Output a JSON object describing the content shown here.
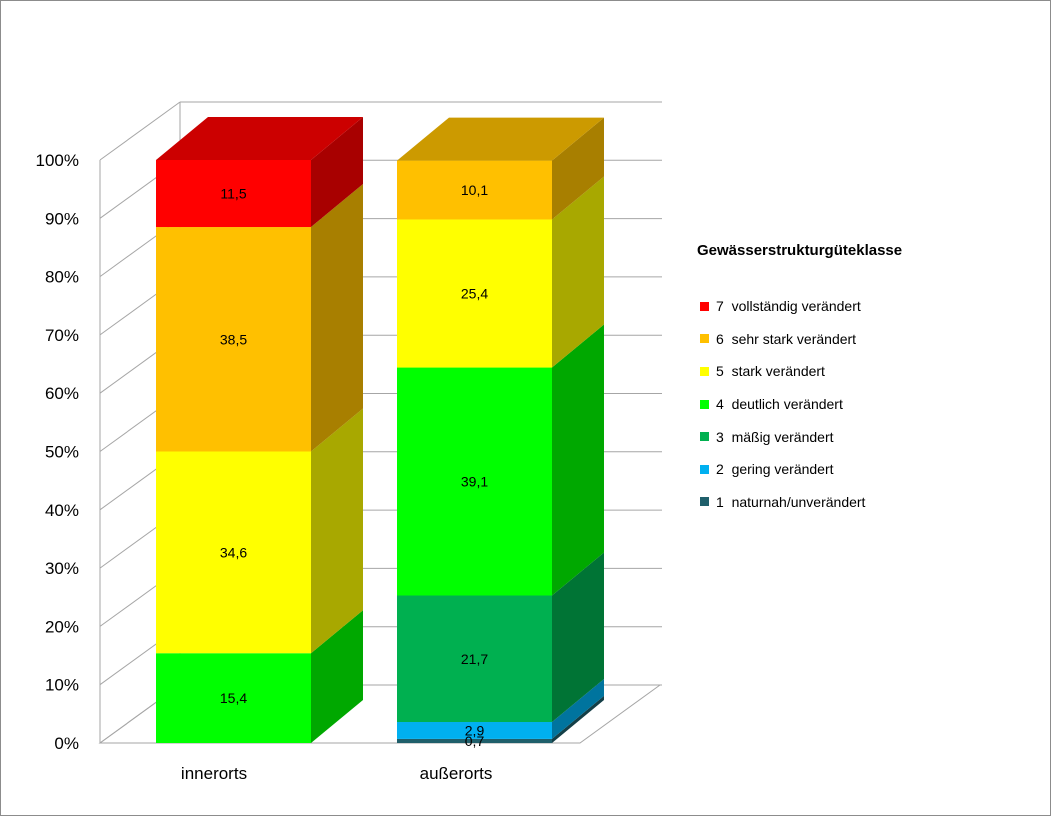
{
  "chart_data": {
    "type": "bar",
    "stacked": true,
    "three_d": true,
    "categories": [
      "innerorts",
      "außerorts"
    ],
    "ylim": [
      0,
      100
    ],
    "yticks": [
      "0%",
      "10%",
      "20%",
      "30%",
      "40%",
      "50%",
      "60%",
      "70%",
      "80%",
      "90%",
      "100%"
    ],
    "legend_title": "Gewässerstrukturgüteklasse",
    "legend_position": "right",
    "grid": true,
    "series": [
      {
        "name": "1  naturnah/unverändert",
        "color": "#1f5f6b",
        "values": [
          0,
          0.7
        ],
        "labels": [
          "",
          "0,7"
        ]
      },
      {
        "name": "2  gering verändert",
        "color": "#00b0f0",
        "values": [
          0,
          2.9
        ],
        "labels": [
          "",
          "2,9"
        ]
      },
      {
        "name": "3  mäßig verändert",
        "color": "#00b050",
        "values": [
          0,
          21.7
        ],
        "labels": [
          "",
          "21,7"
        ]
      },
      {
        "name": "4  deutlich verändert",
        "color": "#00ff00",
        "values": [
          15.4,
          39.1
        ],
        "labels": [
          "15,4",
          "39,1"
        ]
      },
      {
        "name": "5  stark verändert",
        "color": "#ffff00",
        "values": [
          34.6,
          25.4
        ],
        "labels": [
          "34,6",
          "25,4"
        ]
      },
      {
        "name": "6  sehr stark verändert",
        "color": "#ffc000",
        "values": [
          38.5,
          10.1
        ],
        "labels": [
          "38,5",
          "10,1"
        ]
      },
      {
        "name": "7  vollständig verändert",
        "color": "#ff0000",
        "values": [
          11.5,
          0
        ],
        "labels": [
          "11,5",
          ""
        ]
      }
    ]
  }
}
